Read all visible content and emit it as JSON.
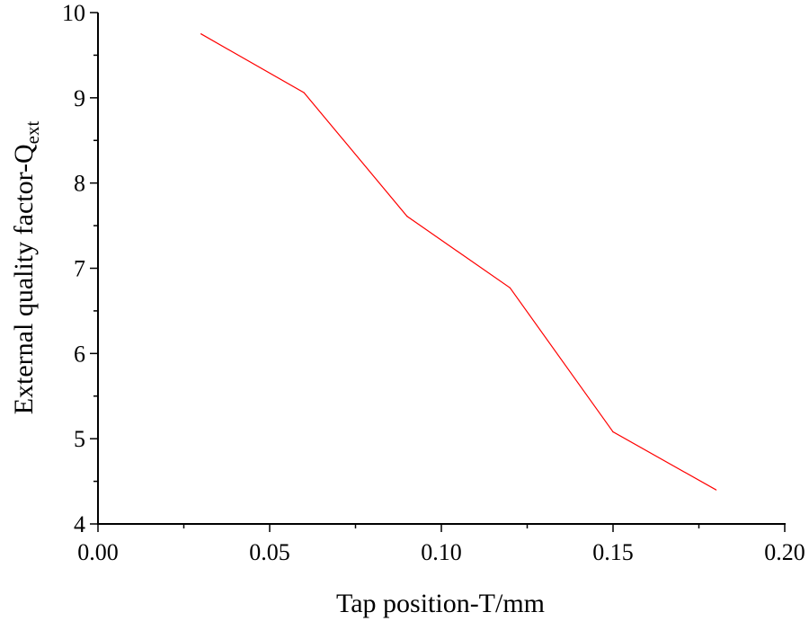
{
  "chart_data": {
    "type": "line",
    "title": "",
    "xlabel": "Tap position-T/mm",
    "ylabel_main": "External quality factor-Q",
    "ylabel_sub": "ext",
    "xlim": [
      0.0,
      0.2
    ],
    "ylim": [
      4,
      10
    ],
    "xticks": [
      "0.00",
      "0.05",
      "0.10",
      "0.15",
      "0.20"
    ],
    "yticks": [
      "4",
      "5",
      "6",
      "7",
      "8",
      "9",
      "10"
    ],
    "grid": false,
    "series": [
      {
        "name": "Qext",
        "color": "#ff0000",
        "x": [
          0.03,
          0.06,
          0.09,
          0.12,
          0.15,
          0.18
        ],
        "y": [
          9.75,
          9.06,
          7.61,
          6.77,
          5.08,
          4.4
        ]
      }
    ]
  }
}
